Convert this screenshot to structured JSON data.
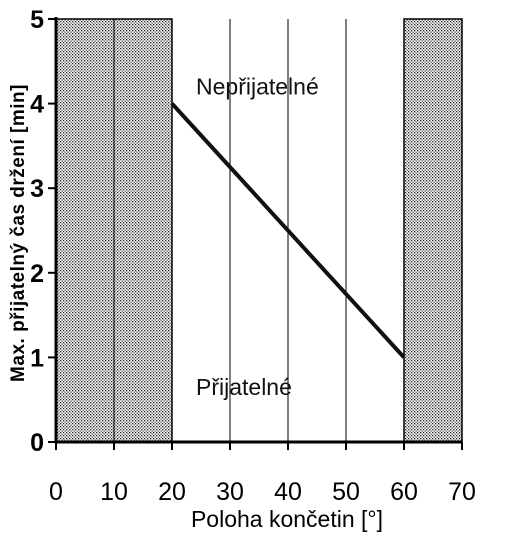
{
  "chart_data": {
    "type": "line",
    "xlabel": "Poloha končetin [°]",
    "ylabel": "Max. přijatelný čas držení [min]",
    "xlim": [
      0,
      70
    ],
    "ylim": [
      0,
      5
    ],
    "x_ticks": [
      "0",
      "10",
      "20",
      "30",
      "40",
      "50",
      "60",
      "70"
    ],
    "y_ticks": [
      "0",
      "1",
      "2",
      "3",
      "4",
      "5"
    ],
    "grid": "vertical",
    "series": [
      {
        "x": [
          20,
          60
        ],
        "y": [
          4,
          1
        ]
      }
    ],
    "shaded_regions": [
      {
        "x_start": 0,
        "x_end": 20
      },
      {
        "x_start": 60,
        "x_end": 70
      }
    ],
    "annotations": [
      {
        "text": "Nepřijatelné",
        "x": 40,
        "y": 4.2
      },
      {
        "text": "Přijatelné",
        "x": 40,
        "y": 0.65
      }
    ]
  }
}
